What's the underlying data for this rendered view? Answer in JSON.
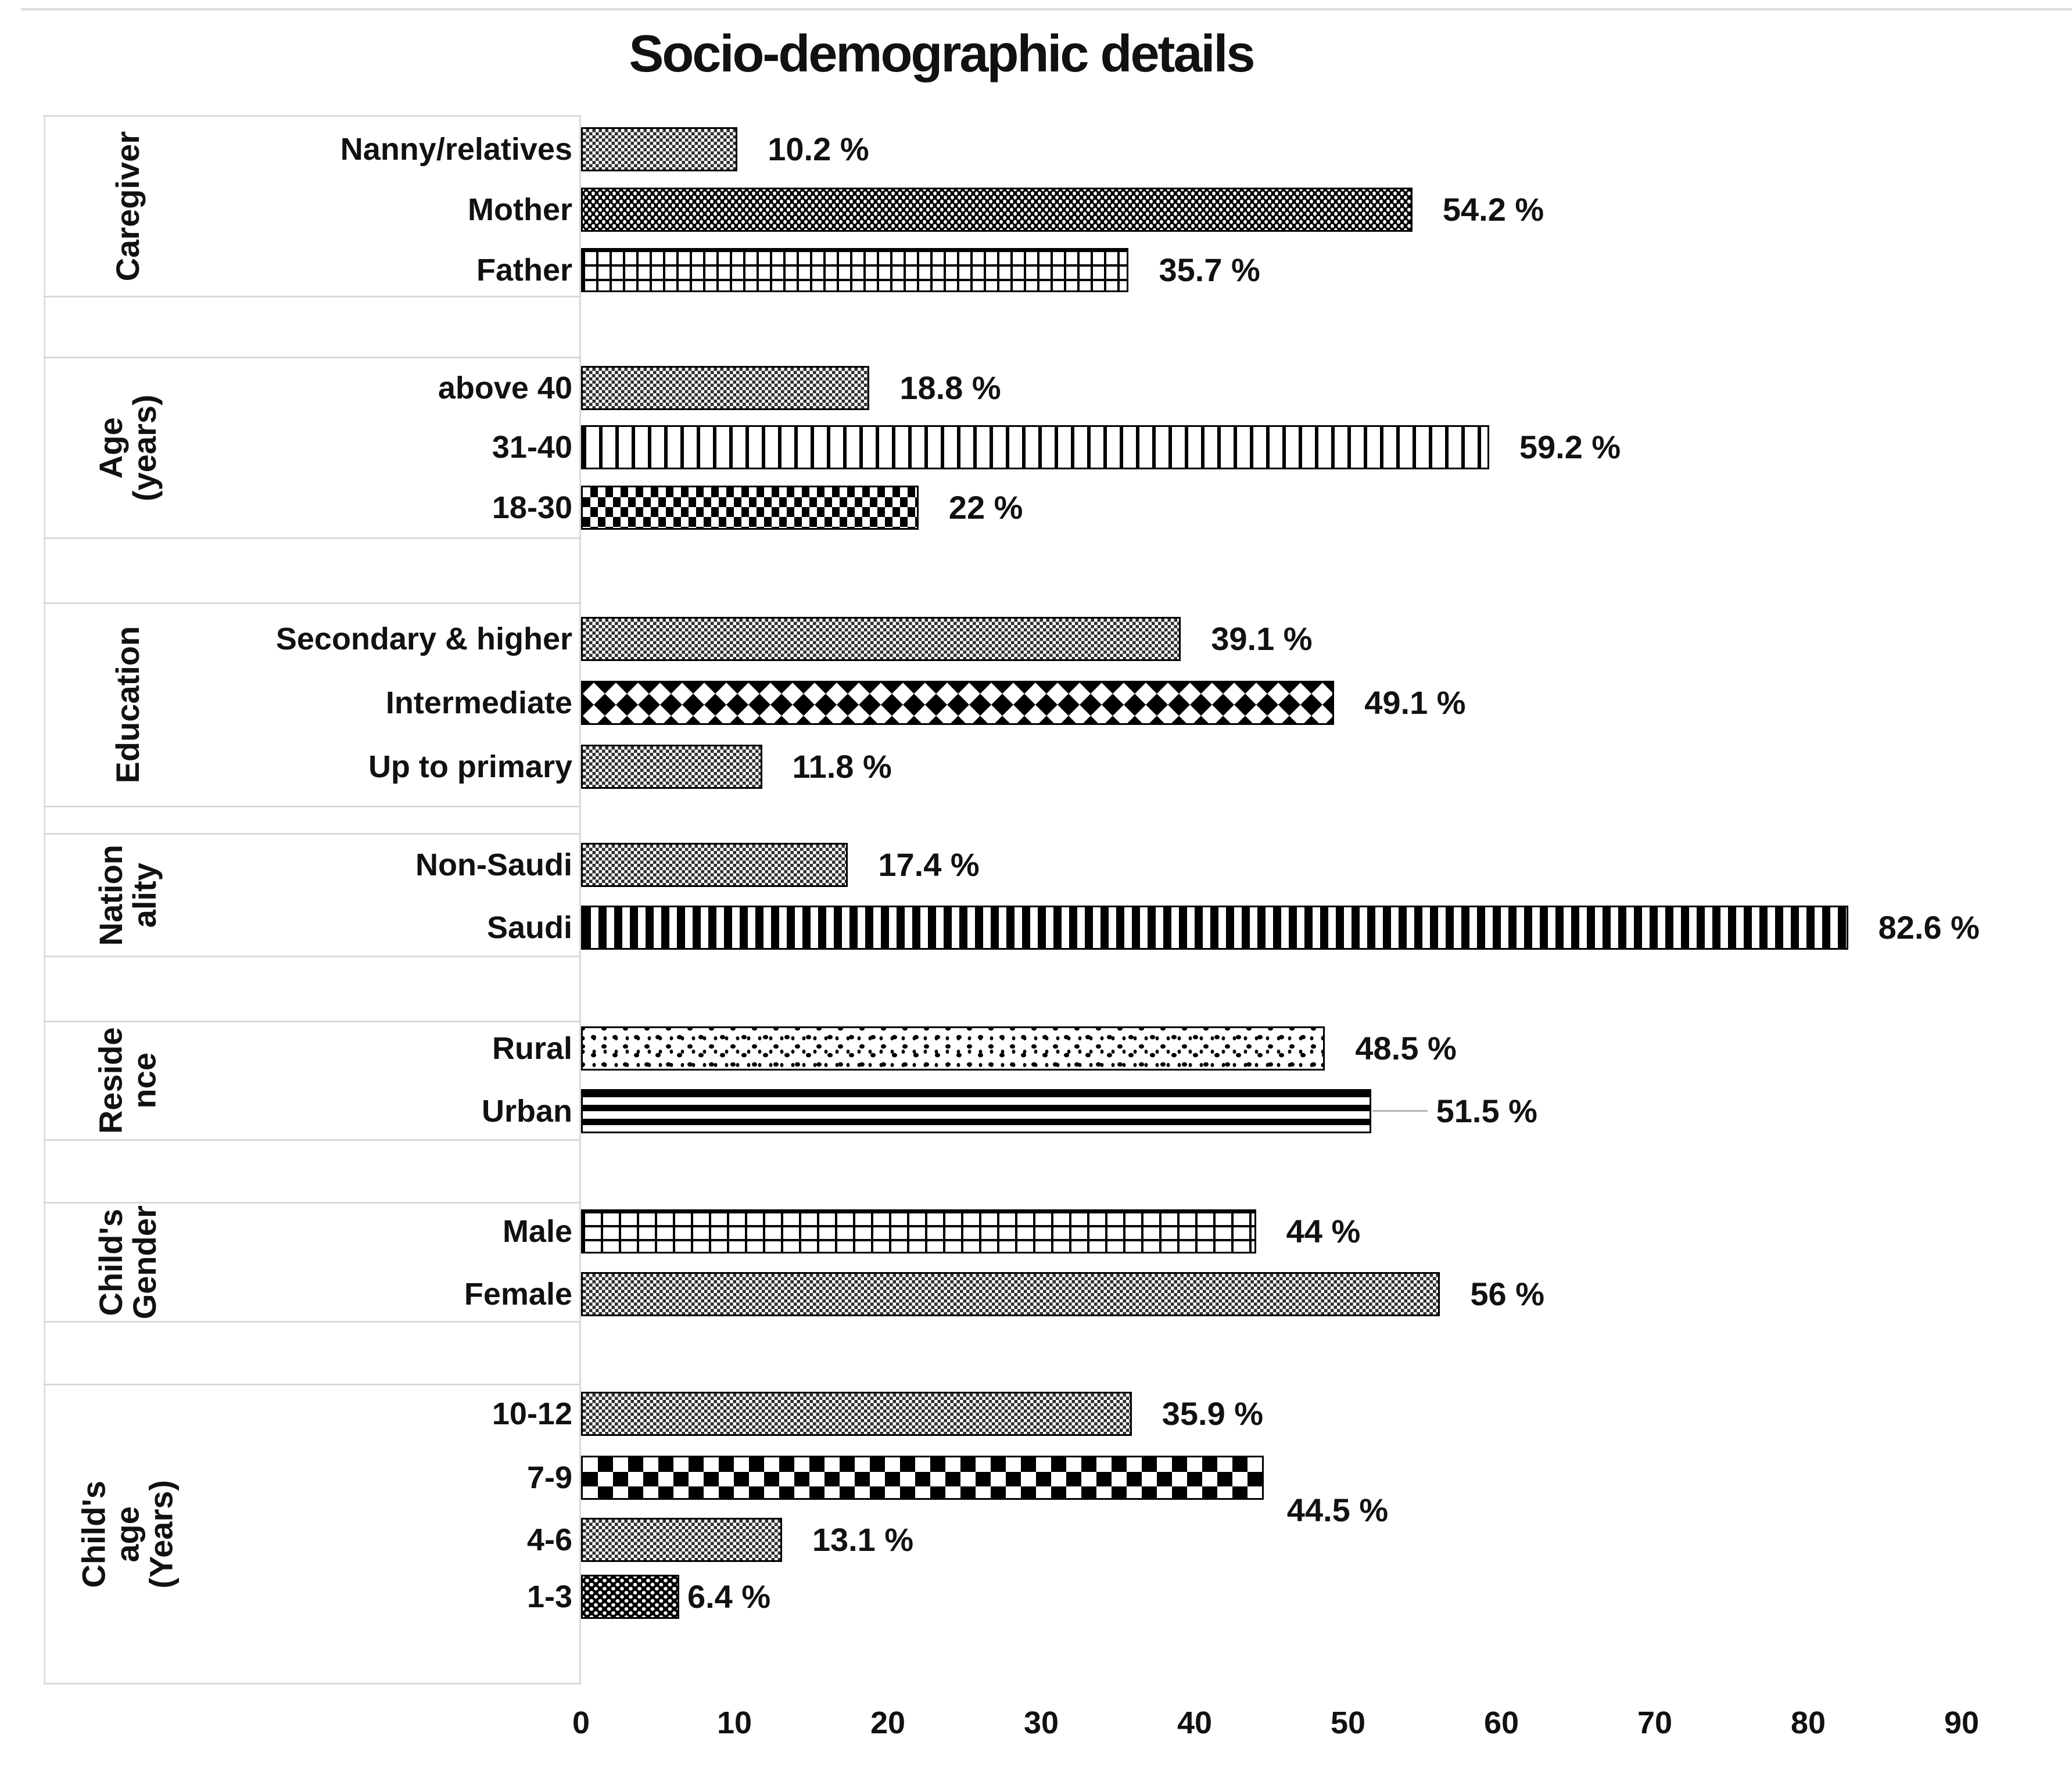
{
  "page": {
    "background": "#ffffff"
  },
  "chart_data": {
    "type": "bar",
    "orientation": "horizontal",
    "title": "Socio-demographic details",
    "value_unit": "%",
    "legend": "none",
    "grid": "off",
    "x_axis": {
      "min": 0,
      "max": 90,
      "tick_interval": 10,
      "ticks": [
        "0",
        "10",
        "20",
        "30",
        "40",
        "50",
        "60",
        "70",
        "80",
        "90"
      ]
    },
    "colors": {
      "bar_ink": "#000000",
      "divider_line": "#d9d9d9",
      "leader_line": "#b3b3b3",
      "text": "#111111"
    },
    "groups": [
      {
        "name": "Caregiver",
        "name_display": "Caregiver",
        "items": [
          {
            "label": "Nanny/relatives",
            "value": 10.2,
            "value_label": "10.2 %",
            "pattern": "checker-small"
          },
          {
            "label": "Mother",
            "value": 54.2,
            "value_label": "54.2 %",
            "pattern": "dots-dense-dark"
          },
          {
            "label": "Father",
            "value": 35.7,
            "value_label": "35.7 %",
            "pattern": "grid-large"
          }
        ]
      },
      {
        "name": "Age (years)",
        "name_display": "Age (years)",
        "items": [
          {
            "label": "above 40",
            "value": 18.8,
            "value_label": "18.8 %",
            "pattern": "checker-small"
          },
          {
            "label": "31-40",
            "value": 59.2,
            "value_label": "59.2 %",
            "pattern": "vlines-wide"
          },
          {
            "label": "18-30",
            "value": 22,
            "value_label": "22 %",
            "pattern": "checker-dash"
          }
        ]
      },
      {
        "name": "Education",
        "name_display": "Education",
        "items": [
          {
            "label": "Secondary & higher",
            "value": 39.1,
            "value_label": "39.1 %",
            "pattern": "checker-small"
          },
          {
            "label": "Intermediate",
            "value": 49.1,
            "value_label": "49.1 %",
            "pattern": "diamond"
          },
          {
            "label": "Up to primary",
            "value": 11.8,
            "value_label": "11.8 %",
            "pattern": "checker-small"
          }
        ]
      },
      {
        "name": "Nationality",
        "name_display": "Nation\nality",
        "items": [
          {
            "label": "Non-Saudi",
            "value": 17.4,
            "value_label": "17.4 %",
            "pattern": "checker-small"
          },
          {
            "label": "Saudi",
            "value": 82.6,
            "value_label": "82.6 %",
            "pattern": "vlines-dense"
          }
        ]
      },
      {
        "name": "Residence",
        "name_display": "Reside\nnce",
        "items": [
          {
            "label": "Rural",
            "value": 48.5,
            "value_label": "48.5 %",
            "pattern": "confetti"
          },
          {
            "label": "Urban",
            "value": 51.5,
            "value_label": "51.5 %",
            "pattern": "hlines",
            "leader_line": true
          }
        ]
      },
      {
        "name": "Child's Gender",
        "name_display": "Child's\nGender",
        "items": [
          {
            "label": "Male",
            "value": 44,
            "value_label": "44 %",
            "pattern": "brick"
          },
          {
            "label": "Female",
            "value": 56,
            "value_label": "56 %",
            "pattern": "checker-small"
          }
        ]
      },
      {
        "name": "Child's age (Years)",
        "name_display": "Child's age (Years)",
        "items": [
          {
            "label": "10-12",
            "value": 35.9,
            "value_label": "35.9 %",
            "pattern": "checker-small"
          },
          {
            "label": "7-9",
            "value": 44.5,
            "value_label": "44.5 %",
            "pattern": "checker-board",
            "value_label_pos": "below"
          },
          {
            "label": "4-6",
            "value": 13.1,
            "value_label": "13.1 %",
            "pattern": "checker-small"
          },
          {
            "label": "1-3",
            "value": 6.4,
            "value_label": "6.4 %",
            "pattern": "dark-dots",
            "value_label_pos": "tight"
          }
        ]
      }
    ]
  }
}
